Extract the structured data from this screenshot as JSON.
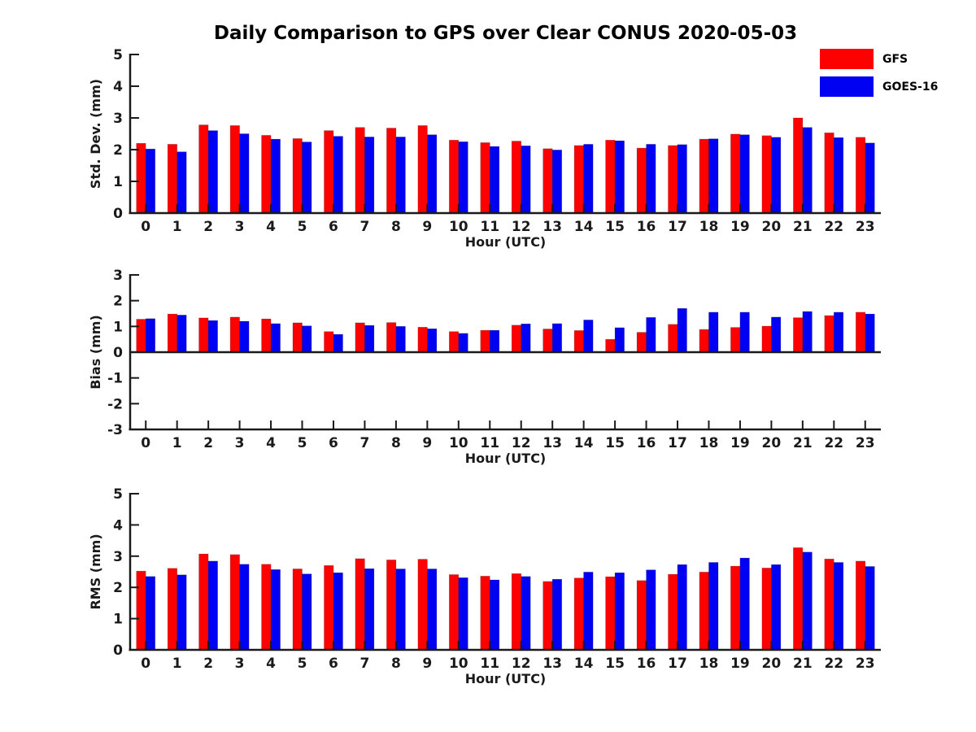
{
  "title": "Daily Comparison to GPS over Clear CONUS 2020-05-03",
  "colors": {
    "gfs": "#ff0000",
    "goes16": "#0000f2",
    "axis": "#1a1a1a",
    "background": "#ffffff"
  },
  "legend": {
    "position": "top-right",
    "items": [
      {
        "label": "GFS",
        "color": "#ff0000"
      },
      {
        "label": "GOES-16",
        "color": "#0000f2"
      }
    ]
  },
  "chart_data": [
    {
      "type": "bar",
      "title": "Daily Comparison to GPS over Clear CONUS 2020-05-03",
      "xlabel": "Hour (UTC)",
      "ylabel": "Std. Dev. (mm)",
      "ylim": [
        0,
        5
      ],
      "yticks": [
        0,
        1,
        2,
        3,
        4,
        5
      ],
      "grid": false,
      "zero_line": false,
      "categories": [
        "0",
        "1",
        "2",
        "3",
        "4",
        "5",
        "6",
        "7",
        "8",
        "9",
        "10",
        "11",
        "12",
        "13",
        "14",
        "15",
        "16",
        "17",
        "18",
        "19",
        "20",
        "21",
        "22",
        "23"
      ],
      "series": [
        {
          "name": "GFS",
          "values": [
            2.2,
            2.17,
            2.78,
            2.76,
            2.45,
            2.35,
            2.6,
            2.7,
            2.68,
            2.76,
            2.3,
            2.22,
            2.27,
            2.03,
            2.13,
            2.3,
            2.05,
            2.13,
            2.33,
            2.49,
            2.44,
            3.0,
            2.53,
            2.39
          ]
        },
        {
          "name": "GOES-16",
          "values": [
            2.02,
            1.93,
            2.6,
            2.5,
            2.33,
            2.24,
            2.42,
            2.4,
            2.4,
            2.47,
            2.25,
            2.1,
            2.12,
            1.99,
            2.17,
            2.28,
            2.17,
            2.16,
            2.34,
            2.47,
            2.39,
            2.7,
            2.38,
            2.21
          ]
        }
      ]
    },
    {
      "type": "bar",
      "title": "",
      "xlabel": "Hour (UTC)",
      "ylabel": "Bias (mm)",
      "ylim": [
        -3,
        3
      ],
      "yticks": [
        -3,
        -2,
        -1,
        0,
        1,
        2,
        3
      ],
      "grid": false,
      "zero_line": true,
      "categories": [
        "0",
        "1",
        "2",
        "3",
        "4",
        "5",
        "6",
        "7",
        "8",
        "9",
        "10",
        "11",
        "12",
        "13",
        "14",
        "15",
        "16",
        "17",
        "18",
        "19",
        "20",
        "21",
        "22",
        "23"
      ],
      "series": [
        {
          "name": "GFS",
          "values": [
            1.28,
            1.48,
            1.33,
            1.36,
            1.29,
            1.14,
            0.8,
            1.14,
            1.15,
            0.97,
            0.8,
            0.85,
            1.05,
            0.9,
            0.84,
            0.5,
            0.77,
            1.08,
            0.88,
            0.96,
            1.01,
            1.34,
            1.42,
            1.55
          ]
        },
        {
          "name": "GOES-16",
          "values": [
            1.3,
            1.44,
            1.23,
            1.2,
            1.11,
            1.02,
            0.69,
            1.04,
            1.0,
            0.91,
            0.73,
            0.85,
            1.1,
            1.11,
            1.25,
            0.95,
            1.35,
            1.7,
            1.55,
            1.55,
            1.36,
            1.58,
            1.55,
            1.48
          ]
        }
      ]
    },
    {
      "type": "bar",
      "title": "",
      "xlabel": "Hour (UTC)",
      "ylabel": "RMS (mm)",
      "ylim": [
        0,
        5
      ],
      "yticks": [
        0,
        1,
        2,
        3,
        4,
        5
      ],
      "grid": false,
      "zero_line": false,
      "categories": [
        "0",
        "1",
        "2",
        "3",
        "4",
        "5",
        "6",
        "7",
        "8",
        "9",
        "10",
        "11",
        "12",
        "13",
        "14",
        "15",
        "16",
        "17",
        "18",
        "19",
        "20",
        "21",
        "22",
        "23"
      ],
      "series": [
        {
          "name": "GFS",
          "values": [
            2.52,
            2.61,
            3.07,
            3.05,
            2.74,
            2.59,
            2.7,
            2.92,
            2.88,
            2.9,
            2.41,
            2.36,
            2.44,
            2.19,
            2.3,
            2.34,
            2.22,
            2.42,
            2.49,
            2.68,
            2.62,
            3.27,
            2.91,
            2.84
          ]
        },
        {
          "name": "GOES-16",
          "values": [
            2.35,
            2.4,
            2.84,
            2.74,
            2.57,
            2.43,
            2.47,
            2.6,
            2.59,
            2.59,
            2.31,
            2.24,
            2.35,
            2.26,
            2.49,
            2.47,
            2.56,
            2.73,
            2.8,
            2.94,
            2.73,
            3.13,
            2.8,
            2.67
          ]
        }
      ]
    }
  ]
}
